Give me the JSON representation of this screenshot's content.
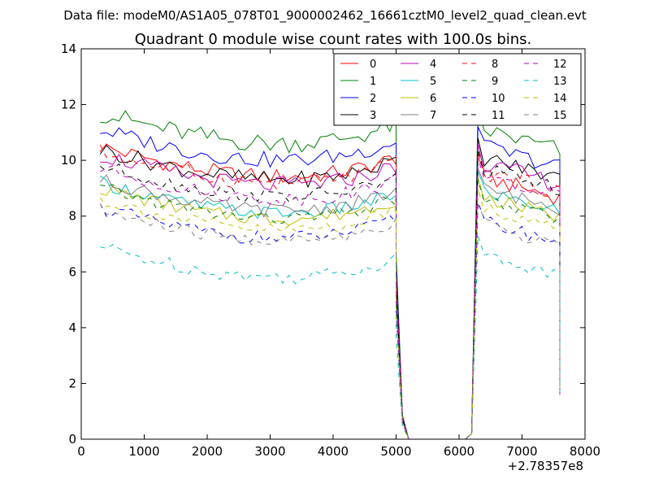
{
  "chart_data": {
    "type": "line",
    "suptitle": "Data file: modeM0/AS1A05_078T01_9000002462_16661cztM0_level2_quad_clean.evt",
    "title": "Quadrant 0 module wise count rates with 100.0s bins.",
    "xlabel": "",
    "ylabel": "",
    "x_offset_label": "+2.78357e8",
    "xlim": [
      0,
      8000
    ],
    "ylim": [
      0,
      14
    ],
    "xticks": [
      0,
      1000,
      2000,
      3000,
      4000,
      5000,
      6000,
      7000,
      8000
    ],
    "yticks": [
      0,
      2,
      4,
      6,
      8,
      10,
      12,
      14
    ],
    "xtick_labels": [
      "0",
      "1000",
      "2000",
      "3000",
      "4000",
      "5000",
      "6000",
      "7000",
      "8000"
    ],
    "ytick_labels": [
      "0",
      "2",
      "4",
      "6",
      "8",
      "10",
      "12",
      "14"
    ],
    "grid": false,
    "legend": "top-right",
    "x_segments": [
      {
        "start": 300,
        "step": 100,
        "count": 48
      },
      {
        "start": 6200,
        "step": 100,
        "count": 15
      }
    ],
    "dropout_x": [
      5000,
      5100,
      5200,
      5300,
      5400,
      5500,
      5600,
      5700,
      5800,
      5900,
      6000,
      6100
    ],
    "series": [
      {
        "name": "0",
        "color": "#ff0000",
        "dash": "solid",
        "level": 9.6,
        "drop": 0.85,
        "late": 8.9,
        "amp": 0.3
      },
      {
        "name": "1",
        "color": "#008000",
        "dash": "solid",
        "level": 10.8,
        "drop": 0.85,
        "late": 10.6,
        "amp": 0.35
      },
      {
        "name": "2",
        "color": "#0000ff",
        "dash": "solid",
        "level": 10.2,
        "drop": 0.85,
        "late": 10.0,
        "amp": 0.3
      },
      {
        "name": "3",
        "color": "#000000",
        "dash": "solid",
        "level": 9.5,
        "drop": 0.85,
        "late": 9.6,
        "amp": 0.3
      },
      {
        "name": "4",
        "color": "#bf00bf",
        "dash": "solid",
        "level": 9.3,
        "drop": 0.85,
        "late": 9.4,
        "amp": 0.3
      },
      {
        "name": "5",
        "color": "#00bfbf",
        "dash": "solid",
        "level": 8.3,
        "drop": 0.85,
        "late": 8.4,
        "amp": 0.25
      },
      {
        "name": "6",
        "color": "#bfbf00",
        "dash": "solid",
        "level": 8.1,
        "drop": 0.85,
        "late": 8.2,
        "amp": 0.25
      },
      {
        "name": "7",
        "color": "#808080",
        "dash": "solid",
        "level": 8.4,
        "drop": 0.85,
        "late": 8.5,
        "amp": 0.25
      },
      {
        "name": "8",
        "color": "#ff0000",
        "dash": "dashed",
        "level": 9.4,
        "drop": 0.85,
        "late": 9.1,
        "amp": 0.3
      },
      {
        "name": "9",
        "color": "#008000",
        "dash": "dashed",
        "level": 8.1,
        "drop": 0.85,
        "late": 8.1,
        "amp": 0.25
      },
      {
        "name": "10",
        "color": "#0000ff",
        "dash": "dashed",
        "level": 7.4,
        "drop": 0.85,
        "late": 7.3,
        "amp": 0.25
      },
      {
        "name": "11",
        "color": "#000000",
        "dash": "dashed",
        "level": 8.9,
        "drop": 0.85,
        "late": 9.2,
        "amp": 0.25
      },
      {
        "name": "12",
        "color": "#bf00bf",
        "dash": "dashed",
        "level": 8.8,
        "drop": 0.85,
        "late": 8.9,
        "amp": 0.25
      },
      {
        "name": "13",
        "color": "#00bfbf",
        "dash": "dashed",
        "level": 6.0,
        "drop": 0.85,
        "late": 6.1,
        "amp": 0.25
      },
      {
        "name": "14",
        "color": "#bfbf00",
        "dash": "dashed",
        "level": 7.7,
        "drop": 0.85,
        "late": 7.8,
        "amp": 0.25
      },
      {
        "name": "15",
        "color": "#808080",
        "dash": "dashed",
        "level": 7.3,
        "drop": 0.85,
        "late": 7.2,
        "amp": 0.25
      }
    ]
  }
}
